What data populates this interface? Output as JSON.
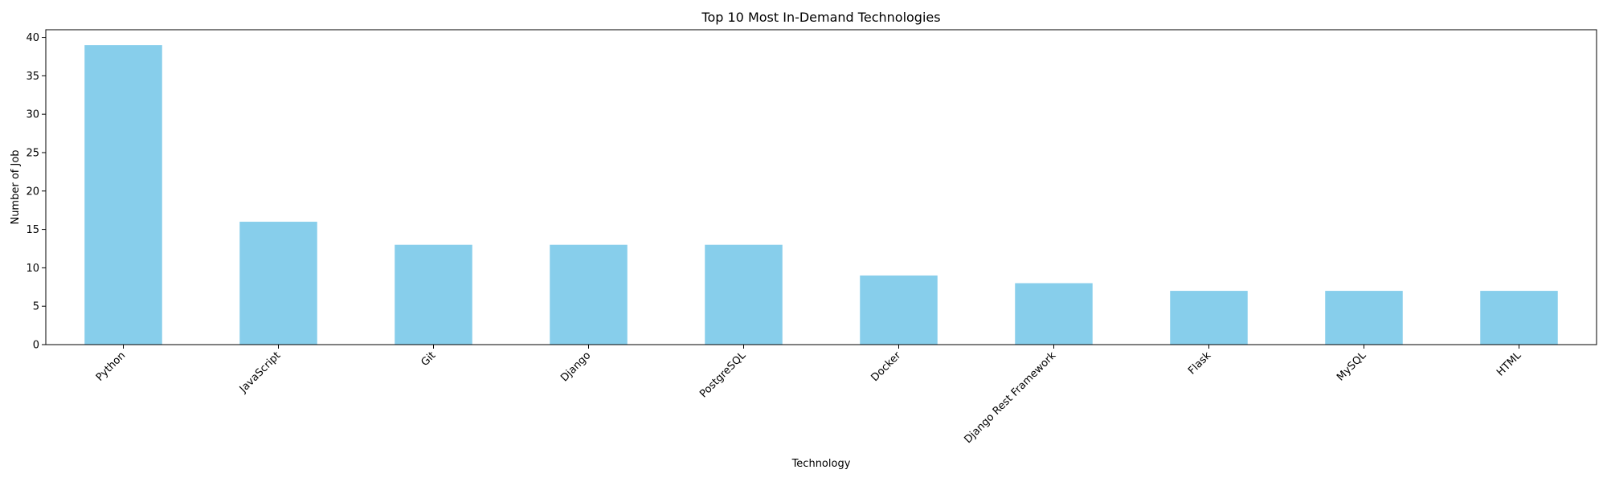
{
  "chart_data": {
    "type": "bar",
    "title": "Top 10 Most In-Demand Technologies",
    "xlabel": "Technology",
    "ylabel": "Number of Job",
    "categories": [
      "Python",
      "JavaScript",
      "Git",
      "Django",
      "PostgreSQL",
      "Docker",
      "Django Rest Framework",
      "Flask",
      "MySQL",
      "HTML"
    ],
    "values": [
      39,
      16,
      13,
      13,
      13,
      9,
      8,
      7,
      7,
      7
    ],
    "ylim": [
      0,
      41
    ],
    "yticks": [
      0,
      5,
      10,
      15,
      20,
      25,
      30,
      35,
      40
    ],
    "grid": false,
    "legend": "none",
    "bar_color": "#87CEEB"
  }
}
